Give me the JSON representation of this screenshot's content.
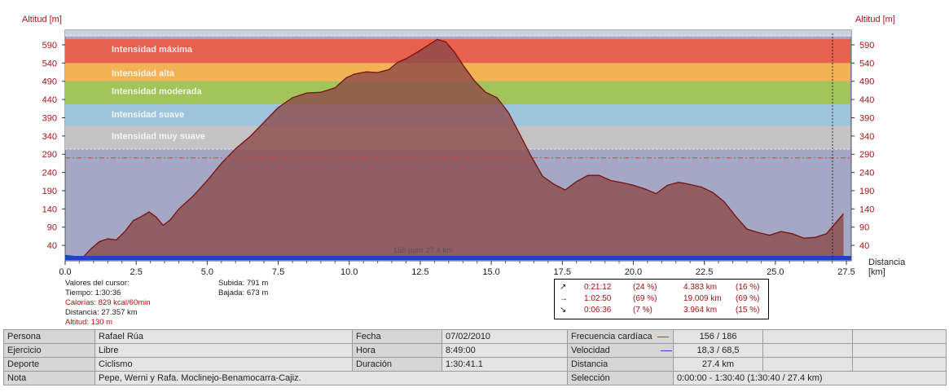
{
  "axes": {
    "y_title_left": "Altitud [m]",
    "y_title_right": "Altitud [m]",
    "x_title_line1": "Distancia",
    "x_title_line2": "[km]"
  },
  "zones": [
    {
      "label": "Intensidad máxima",
      "color": "#e8604e",
      "from": 540,
      "to": 606
    },
    {
      "label": "Intensidad alta",
      "color": "#f2b356",
      "from": 490,
      "to": 540
    },
    {
      "label": "Intensidad moderada",
      "color": "#a2c45a",
      "from": 427,
      "to": 490
    },
    {
      "label": "Intensidad suave",
      "color": "#9ec5dc",
      "from": 368,
      "to": 427
    },
    {
      "label": "Intensidad muy suave",
      "color": "#c4c4c4",
      "from": 304,
      "to": 368
    }
  ],
  "chart_data": {
    "type": "area",
    "xlabel": "Distancia [km]",
    "ylabel": "Altitud [m]",
    "xlim": [
      0,
      28
    ],
    "ylim": [
      0,
      615
    ],
    "x_ticks": [
      "0.0",
      "2.5",
      "5.0",
      "7.5",
      "10.0",
      "12.5",
      "15.0",
      "17.5",
      "20.0",
      "22.5",
      "25.0",
      "27.5"
    ],
    "y_ticks": [
      40,
      90,
      140,
      190,
      240,
      290,
      340,
      390,
      440,
      490,
      540,
      590
    ],
    "series": [
      {
        "name": "Altitud",
        "color": "#9a6a6a",
        "x": [
          0.0,
          0.3,
          0.6,
          0.9,
          1.2,
          1.5,
          1.8,
          2.1,
          2.4,
          2.7,
          2.95,
          3.2,
          3.45,
          3.7,
          4.0,
          4.5,
          5.0,
          5.5,
          6.0,
          6.5,
          7.0,
          7.5,
          8.0,
          8.5,
          9.0,
          9.5,
          9.9,
          10.2,
          10.6,
          11.0,
          11.4,
          11.7,
          12.0,
          12.4,
          12.8,
          13.1,
          13.4,
          13.7,
          14.0,
          14.4,
          14.8,
          15.2,
          15.6,
          16.0,
          16.4,
          16.8,
          17.2,
          17.6,
          18.0,
          18.4,
          18.8,
          19.2,
          19.6,
          20.0,
          20.4,
          20.8,
          21.2,
          21.6,
          22.0,
          22.4,
          22.8,
          23.2,
          23.6,
          24.0,
          24.4,
          24.8,
          25.2,
          25.6,
          26.0,
          26.4,
          26.8,
          27.1,
          27.4
        ],
        "values": [
          12,
          10,
          5,
          30,
          50,
          58,
          55,
          78,
          108,
          120,
          132,
          118,
          95,
          110,
          140,
          175,
          218,
          265,
          305,
          338,
          378,
          418,
          445,
          458,
          460,
          472,
          500,
          510,
          516,
          514,
          522,
          542,
          552,
          570,
          590,
          605,
          598,
          570,
          535,
          492,
          460,
          445,
          405,
          345,
          285,
          230,
          208,
          192,
          215,
          232,
          232,
          218,
          212,
          205,
          195,
          182,
          205,
          213,
          207,
          200,
          185,
          160,
          120,
          85,
          75,
          68,
          78,
          72,
          60,
          62,
          72,
          100,
          127
        ]
      }
    ],
    "reference_line": {
      "value": 280,
      "label": "156 ppm 27.4 km",
      "label_x": 12.6
    }
  },
  "cursor": {
    "title": "Valores del cursor:",
    "tiempo": "Tiempo: 1:30:36",
    "calorias": "Calorías: 829 kcal/60min",
    "distancia": "Distancia: 27.357 km",
    "altitud": "Altitud: 130 m",
    "subida": "Subida: 791 m",
    "bajada": "Bajada: 673 m"
  },
  "summary": [
    {
      "arrow": "↗",
      "time": "0:21:12",
      "pct": "(24 %)",
      "dist": "4.383 km",
      "dpct": "(16 %)"
    },
    {
      "arrow": "→",
      "time": "1:02:50",
      "pct": "(69 %)",
      "dist": "19.009 km",
      "dpct": "(69 %)"
    },
    {
      "arrow": "↘",
      "time": "0:06:36",
      "pct": "(7 %)",
      "dist": "3.964 km",
      "dpct": "(15 %)"
    }
  ],
  "footer": {
    "persona_label": "Persona",
    "persona": "Rafael Rúa",
    "ejercicio_label": "Ejercicio",
    "ejercicio": "Libre",
    "deporte_label": "Deporte",
    "deporte": "Ciclismo",
    "nota_label": "Nota",
    "nota": "Pepe, Werni y Rafa. Moclinejo-Benamocarra-Cajiz.",
    "fecha_label": "Fecha",
    "fecha": "07/02/2010",
    "hora_label": "Hora",
    "hora": "8:49:00",
    "duracion_label": "Duración",
    "duracion": "1:30:41.1",
    "fc_label": "Frecuencia cardíaca",
    "fc": "156 / 186",
    "fc_color": "#d03030",
    "vel_label": "Velocidad",
    "vel": "18,3 / 68,5",
    "vel_color": "#3040c0",
    "dist_label": "Distancia",
    "dist": "27.4 km",
    "sel_label": "Selección",
    "sel": "0:00:00 - 1:30:40 (1:30:40 / 27.4 km)"
  }
}
